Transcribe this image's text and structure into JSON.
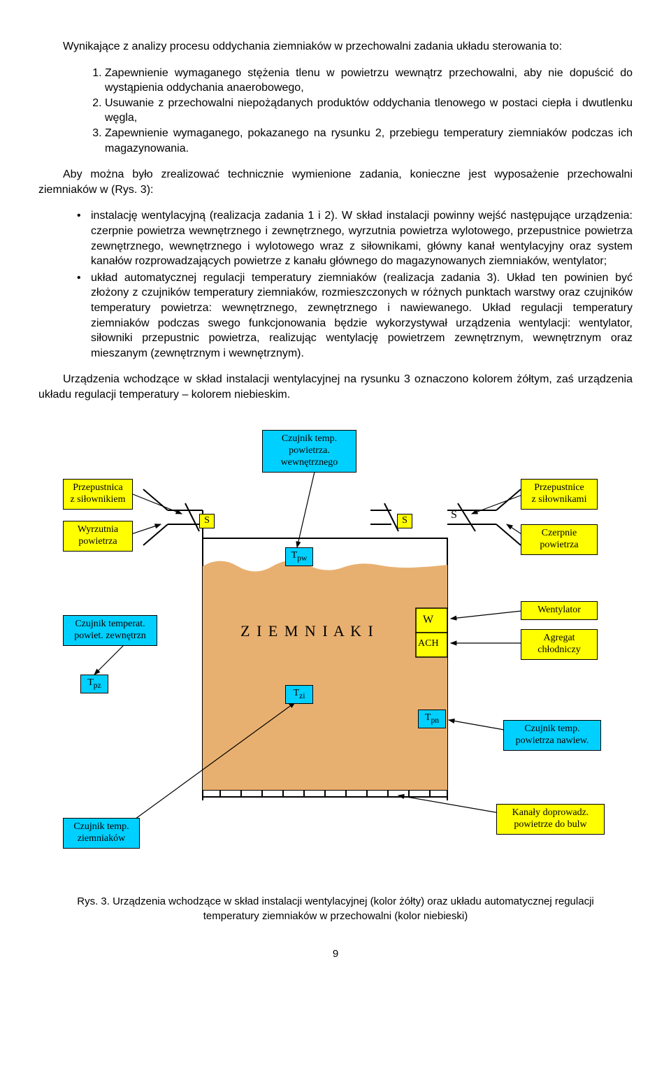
{
  "intro": "Wynikające z analizy procesu oddychania ziemniaków w przechowalni zadania układu sterowania to:",
  "list_items": [
    "Zapewnienie wymaganego stężenia tlenu w powietrzu wewnątrz przechowalni, aby nie dopuścić do wystąpienia oddychania anaerobowego,",
    "Usuwanie z przechowalni niepożądanych produktów oddychania tlenowego w postaci ciepła i dwutlenku węgla,",
    "Zapewnienie wymaganego, pokazanego na rysunku 2, przebiegu temperatury ziemniaków podczas ich magazynowania."
  ],
  "after_list": "Aby można było zrealizować technicznie wymienione zadania, konieczne jest wyposażenie przechowalni ziemniaków w (Rys. 3):",
  "bullets": [
    "instalację wentylacyjną (realizacja zadania 1 i 2). W skład instalacji powinny wejść następujące urządzenia: czerpnie powietrza wewnętrznego i zewnętrznego, wyrzutnia powietrza wylotowego, przepustnice powietrza zewnętrznego, wewnętrznego i wylotowego wraz z siłownikami, główny kanał wentylacyjny oraz system kanałów rozprowadzających powietrze z kanału głównego do magazynowanych ziemniaków, wentylator;",
    "układ automatycznej regulacji temperatury ziemniaków (realizacja zadania 3). Układ ten powinien być złożony z czujników temperatury ziemniaków, rozmieszczonych w różnych punktach warstwy oraz czujników temperatury powietrza: wewnętrznego, zewnętrznego i nawiewanego. Układ regulacji temperatury ziemniaków podczas swego funkcjonowania będzie wykorzystywał urządzenia wentylacji: wentylator, siłowniki przepustnic powietrza, realizując wentylację powietrzem zewnętrznym, wewnętrznym oraz mieszanym (zewnętrznym i wewnętrznym)."
  ],
  "closing": "Urządzenia wchodzące w skład instalacji wentylacyjnej na rysunku 3 oznaczono kolorem żółtym, zaś urządzenia układu regulacji temperatury – kolorem niebieskim.",
  "caption": "Rys. 3. Urządzenia wchodzące w skład instalacji wentylacyjnej (kolor żółty) oraz układu automatycznej regulacji temperatury ziemniaków w przechowalni (kolor niebieski)",
  "page_number": "9",
  "diagram": {
    "colors": {
      "yellow": "#ffff00",
      "cyan": "#00d0ff",
      "potato_fill": "#e8b070",
      "black": "#000000",
      "white": "#ffffff"
    },
    "center_text": "Z I E M N I A K I",
    "small_boxes": {
      "S_left": "S",
      "S_mid": "S",
      "S_right": "S",
      "Tpw": "T",
      "Tpw_sub": "pw",
      "Tpz": "T",
      "Tpz_sub": "pz",
      "Tzi": "T",
      "Tzi_sub": "zi",
      "W": "W",
      "ACH": "ACH",
      "Tpn": "T",
      "Tpn_sub": "pn"
    },
    "labels": {
      "przepustnica": "Przepustnica\nz siłownikiem",
      "wyrzutnia": "Wyrzutnia\npowietrza",
      "czujnik_pw": "Czujnik temp.\npowietrza.\nwewnętrznego",
      "czujnik_pzew": "Czujnik temperat.\npowiet. zewnętrzn",
      "czujnik_ziem": "Czujnik temp.\nziemniaków",
      "przepustnice": "Przepustnice\nz siłownikami",
      "czerpnie": "Czerpnie\npowietrza",
      "wentylator": "Wentylator",
      "agregat": "Agregat\nchłodniczy",
      "czujnik_naw": "Czujnik temp.\npowietrza nawiew.",
      "kanaly": "Kanały doprowadz.\npowietrze do bulw"
    }
  }
}
